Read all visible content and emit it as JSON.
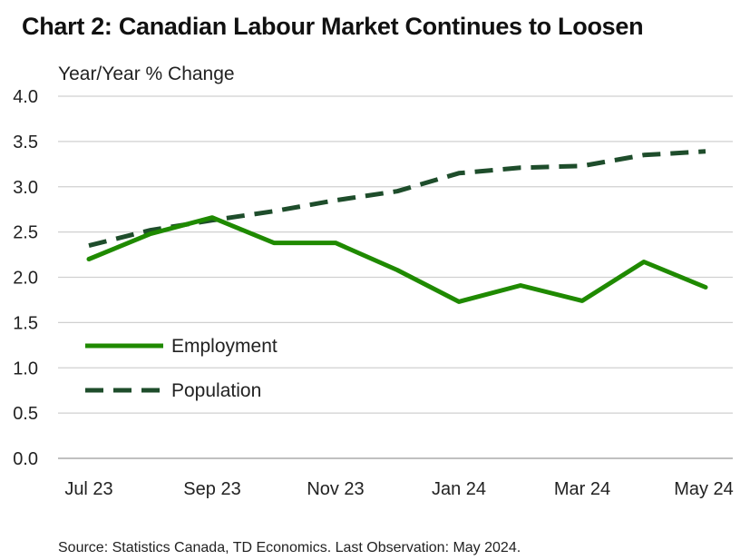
{
  "title": "Chart 2: Canadian Labour Market Continues to Loosen",
  "source": "Source: Statistics Canada, TD Economics. Last Observation: May 2024.",
  "colors": {
    "employment": "#1f8a00",
    "population": "#1e4d2b",
    "grid": "#d0d0d0"
  },
  "chart_data": {
    "type": "line",
    "title": "Chart 2: Canadian Labour Market Continues to Loosen",
    "ylabel": "Year/Year % Change",
    "xlabel": "",
    "x": [
      "Jul 23",
      "Aug 23",
      "Sep 23",
      "Oct 23",
      "Nov 23",
      "Dec 23",
      "Jan 24",
      "Feb 24",
      "Mar 24",
      "Apr 24",
      "May 24"
    ],
    "x_tick_labels": [
      "Jul 23",
      "Sep 23",
      "Nov 23",
      "Jan 24",
      "Mar 24",
      "May 24"
    ],
    "ylim": [
      0.0,
      4.0
    ],
    "y_ticks": [
      "0.0",
      "0.5",
      "1.0",
      "1.5",
      "2.0",
      "2.5",
      "3.0",
      "3.5",
      "4.0"
    ],
    "grid": "horizontal",
    "legend": "middle-left",
    "series": [
      {
        "name": "Employment",
        "style": "solid",
        "values": [
          2.2,
          2.48,
          2.66,
          2.38,
          2.38,
          2.08,
          1.73,
          1.91,
          1.74,
          2.17,
          1.89
        ]
      },
      {
        "name": "Population",
        "style": "dashed",
        "values": [
          2.35,
          2.52,
          2.63,
          2.73,
          2.85,
          2.95,
          3.15,
          3.21,
          3.23,
          3.35,
          3.39
        ]
      }
    ]
  }
}
